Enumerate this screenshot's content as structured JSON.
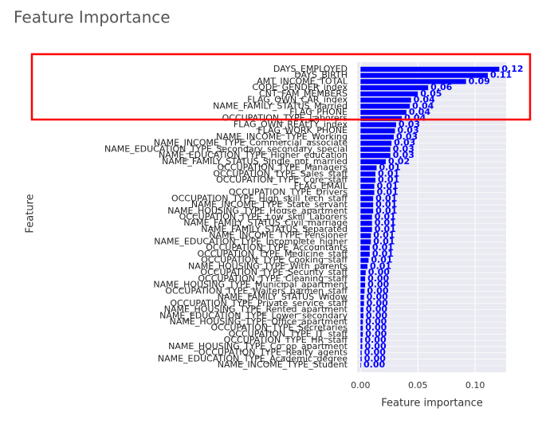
{
  "chart_data": {
    "type": "barh",
    "title": "Feature Importance",
    "xlabel": "Feature importance",
    "ylabel": "Feature",
    "categories": [
      "DAYS_EMPLOYED",
      "DAYS_BIRTH",
      "AMT_INCOME_TOTAL",
      "CODE_GENDER_index",
      "CNT_FAM_MEMBERS",
      "FLAG_OWN_CAR_index",
      "NAME_FAMILY_STATUS_Married",
      "FLAG_PHONE",
      "OCCUPATION_TYPE_Laborers",
      "FLAG_OWN_REALTY_index",
      "FLAG_WORK_PHONE",
      "NAME_INCOME_TYPE_Working",
      "NAME_INCOME_TYPE_Commercial_associate",
      "NAME_EDUCATION_TYPE_Secondary_secondary_special",
      "NAME_EDUCATION_TYPE_Higher_education",
      "NAME_FAMILY_STATUS_Single_not_married",
      "OCCUPATION_TYPE_Managers",
      "OCCUPATION_TYPE_Sales_staff",
      "OCCUPATION_TYPE_Core_staff",
      "FLAG_EMAIL",
      "OCCUPATION_TYPE_Drivers",
      "OCCUPATION_TYPE_High_skill_tech_staff",
      "NAME_INCOME_TYPE_State_servant",
      "NAME_HOUSING_TYPE_House_apartment",
      "OCCUPATION_TYPE_Low_skill_Laborers",
      "NAME_FAMILY_STATUS_Civil_marriage",
      "NAME_FAMILY_STATUS_Separated",
      "NAME_INCOME_TYPE_Pensioner",
      "NAME_EDUCATION_TYPE_Incomplete_higher",
      "OCCUPATION_TYPE_Accountants",
      "OCCUPATION_TYPE_Medicine_staff",
      "OCCUPATION_TYPE_Cooking_staff",
      "NAME_HOUSING_TYPE_With_parents",
      "OCCUPATION_TYPE_Security_staff",
      "OCCUPATION_TYPE_Cleaning_staff",
      "NAME_HOUSING_TYPE_Municipal_apartment",
      "OCCUPATION_TYPE_Waiters_barmen_staff",
      "NAME_FAMILY_STATUS_Widow",
      "OCCUPATION_TYPE_Private_service_staff",
      "NAME_HOUSING_TYPE_Rented_apartment",
      "NAME_EDUCATION_TYPE_Lower_secondary",
      "NAME_HOUSING_TYPE_Office_apartment",
      "OCCUPATION_TYPE_Secretaries",
      "OCCUPATION_TYPE_IT_staff",
      "OCCUPATION_TYPE_HR_staff",
      "NAME_HOUSING_TYPE_Co_op_apartment",
      "OCCUPATION_TYPE_Realty_agents",
      "NAME_EDUCATION_TYPE_Academic_degree",
      "NAME_INCOME_TYPE_Student"
    ],
    "values": [
      0.121,
      0.111,
      0.092,
      0.059,
      0.05,
      0.044,
      0.043,
      0.04,
      0.036,
      0.031,
      0.03,
      0.029,
      0.027,
      0.026,
      0.026,
      0.022,
      0.014,
      0.013,
      0.013,
      0.012,
      0.012,
      0.011,
      0.011,
      0.011,
      0.01,
      0.01,
      0.01,
      0.009,
      0.009,
      0.008,
      0.008,
      0.007,
      0.006,
      0.0045,
      0.004,
      0.004,
      0.0035,
      0.003,
      0.003,
      0.0025,
      0.0025,
      0.002,
      0.002,
      0.002,
      0.0015,
      0.0015,
      0.001,
      0.001,
      0.0005
    ],
    "value_labels": [
      "0.12",
      "0.11",
      "0.09",
      "0.06",
      "0.05",
      "0.04",
      "0.04",
      "0.04",
      "0.04",
      "0.03",
      "0.03",
      "0.03",
      "0.03",
      "0.03",
      "0.03",
      "0.02",
      "0.01",
      "0.01",
      "0.01",
      "0.01",
      "0.01",
      "0.01",
      "0.01",
      "0.01",
      "0.01",
      "0.01",
      "0.01",
      "0.01",
      "0.01",
      "0.01",
      "0.01",
      "0.01",
      "0.01",
      "0.00",
      "0.00",
      "0.00",
      "0.00",
      "0.00",
      "0.00",
      "0.00",
      "0.00",
      "0.00",
      "0.00",
      "0.00",
      "0.00",
      "0.00",
      "0.00",
      "0.00",
      "0.00"
    ],
    "color": "#0000ff",
    "xlim": [
      -0.003,
      0.127
    ],
    "xticks": [
      {
        "value": 0,
        "label": "0.00"
      },
      {
        "value": 0.05,
        "label": "0.05"
      },
      {
        "value": 0.1,
        "label": "0.10"
      }
    ],
    "grid": true
  }
}
